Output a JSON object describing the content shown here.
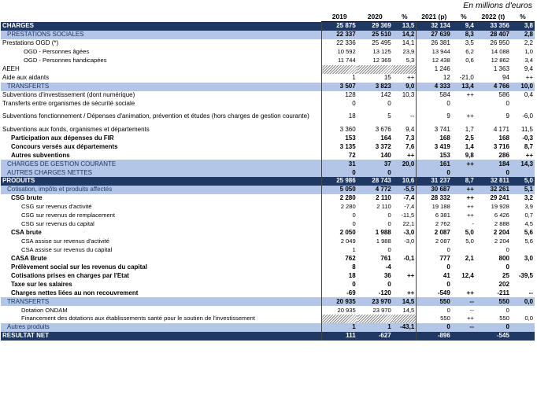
{
  "unit_note": "En millions d'euros",
  "headers": [
    "",
    "2019",
    "2020",
    "%",
    "2021 (p)",
    "%",
    "2022 (t)",
    "%"
  ],
  "rows": [
    {
      "cls": "l0",
      "cells": [
        "CHARGES",
        "25 875",
        "29 369",
        "13,5",
        "32 134",
        "9,4",
        "33 356",
        "3,8"
      ]
    },
    {
      "cls": "l1",
      "cells": [
        "PRESTATIONS SOCIALES",
        "22 337",
        "25 510",
        "14,2",
        "27 639",
        "8,3",
        "28 407",
        "2,8"
      ]
    },
    {
      "cls": "n",
      "cells": [
        "Prestations OGD (*)",
        "22 336",
        "25 495",
        "14,1",
        "26 381",
        "3,5",
        "26 950",
        "2,2"
      ]
    },
    {
      "cls": "s",
      "cells": [
        "OGD - Personnes âgées",
        "10 592",
        "13 125",
        "23,9",
        "13 944",
        "6,2",
        "14 088",
        "1,0"
      ]
    },
    {
      "cls": "s",
      "cells": [
        "OGD - Personnes handicapées",
        "11 744",
        "12 369",
        "5,3",
        "12 438",
        "0,6",
        "12 862",
        "3,4"
      ]
    },
    {
      "cls": "n",
      "hatch": true,
      "cells": [
        "AEEH",
        "",
        "",
        "",
        "1 246",
        "",
        "1 363",
        "9,4"
      ]
    },
    {
      "cls": "n",
      "cells": [
        "Aide aux aidants",
        "1",
        "15",
        "++",
        "12",
        "-21,0",
        "94",
        "++"
      ]
    },
    {
      "cls": "l1",
      "cells": [
        "TRANSFERTS",
        "3 507",
        "3 823",
        "9,0",
        "4 333",
        "13,4",
        "4 766",
        "10,0"
      ]
    },
    {
      "cls": "n",
      "cells": [
        "Subventions d'investissement (dont numérique)",
        "128",
        "142",
        "10,3",
        "584",
        "++",
        "586",
        "0,4"
      ]
    },
    {
      "cls": "n",
      "cells": [
        "Transferts entre organismes de sécurité sociale",
        "0",
        "0",
        "",
        "0",
        "",
        "0",
        ""
      ]
    },
    {
      "cls": "n tall",
      "cells": [
        "Subventions fonctionnement / Dépenses d'animation, prévention et études (hors charges de gestion courante)",
        "18",
        "5",
        "--",
        "9",
        "++",
        "9",
        "-6,0"
      ]
    },
    {
      "cls": "n",
      "cells": [
        "Subventions aux fonds, organismes et départements",
        "3 360",
        "3 676",
        "9,4",
        "3 741",
        "1,7",
        "4 171",
        "11,5"
      ]
    },
    {
      "cls": "b",
      "cells": [
        "Participation aux dépenses du FIR",
        "153",
        "164",
        "7,3",
        "168",
        "2,5",
        "168",
        "-0,3"
      ]
    },
    {
      "cls": "b",
      "cells": [
        "Concours versés aux départements",
        "3 135",
        "3 372",
        "7,6",
        "3 419",
        "1,4",
        "3 716",
        "8,7"
      ]
    },
    {
      "cls": "b",
      "cells": [
        "Autres subventions",
        "72",
        "140",
        "++",
        "153",
        "9,8",
        "286",
        "++"
      ]
    },
    {
      "cls": "l1",
      "cells": [
        "CHARGES DE GESTION COURANTE",
        "31",
        "37",
        "20,0",
        "161",
        "++",
        "184",
        "14,3"
      ]
    },
    {
      "cls": "l1",
      "cells": [
        "AUTRES CHARGES NETTES",
        "0",
        "0",
        "",
        "0",
        "",
        "0",
        ""
      ]
    },
    {
      "cls": "l0",
      "cells": [
        "PRODUITS",
        "25 986",
        "28 743",
        "10,6",
        "31 237",
        "8,7",
        "32 811",
        "5,0"
      ]
    },
    {
      "cls": "l1",
      "cells": [
        "Cotisation, impôts et produits affectés",
        "5 050",
        "4 772",
        "-5,5",
        "30 687",
        "++",
        "32 261",
        "5,1"
      ]
    },
    {
      "cls": "b",
      "cells": [
        "CSG brute",
        "2 280",
        "2 110",
        "-7,4",
        "28 332",
        "++",
        "29 241",
        "3,2"
      ]
    },
    {
      "cls": "s2",
      "cells": [
        "CSG sur revenus d'activité",
        "2 280",
        "2 110",
        "-7,4",
        "19 188",
        "++",
        "19 928",
        "3,9"
      ]
    },
    {
      "cls": "s2",
      "cells": [
        "CSG sur revenus de remplacement",
        "0",
        "0",
        "-11,5",
        "6 381",
        "++",
        "6 426",
        "0,7"
      ]
    },
    {
      "cls": "s2",
      "cells": [
        "CSG sur revenus du capital",
        "0",
        "0",
        "22,1",
        "2 762",
        "-",
        "2 888",
        "4,5"
      ]
    },
    {
      "cls": "b",
      "cells": [
        "CSA brute",
        "2 050",
        "1 988",
        "-3,0",
        "2 087",
        "5,0",
        "2 204",
        "5,6"
      ]
    },
    {
      "cls": "s2",
      "cells": [
        "CSA assise sur revenus d'activité",
        "2 049",
        "1 988",
        "-3,0",
        "2 087",
        "5,0",
        "2 204",
        "5,6"
      ]
    },
    {
      "cls": "s2",
      "cells": [
        "CSA assise sur revenus du capital",
        "1",
        "0",
        "",
        "0",
        "",
        "0",
        ""
      ]
    },
    {
      "cls": "b",
      "cells": [
        "CASA Brute",
        "762",
        "761",
        "-0,1",
        "777",
        "2,1",
        "800",
        "3,0"
      ]
    },
    {
      "cls": "b",
      "cells": [
        "Prélèvement social sur les revenus du capital",
        "8",
        "-4",
        "",
        "0",
        "",
        "0",
        ""
      ]
    },
    {
      "cls": "b",
      "cells": [
        "Cotisations prises en charges par l'Etat",
        "18",
        "36",
        "++",
        "41",
        "12,4",
        "25",
        "-39,5"
      ]
    },
    {
      "cls": "b",
      "cells": [
        "Taxe sur les salaires",
        "0",
        "0",
        "",
        "0",
        "",
        "202",
        ""
      ]
    },
    {
      "cls": "b",
      "cells": [
        "Charges nettes liées au non recouvrement",
        "-69",
        "-120",
        "++",
        "-549",
        "++",
        "-211",
        "--"
      ]
    },
    {
      "cls": "l1",
      "cells": [
        "TRANSFERTS",
        "20 935",
        "23 970",
        "14,5",
        "550",
        "--",
        "550",
        "0,0"
      ]
    },
    {
      "cls": "s2",
      "cells": [
        "Dotation ONDAM",
        "20 935",
        "23 970",
        "14,5",
        "0",
        "--",
        "0",
        ""
      ]
    },
    {
      "cls": "s2 hatchfin",
      "cells": [
        "Financement des dotations aux établissements santé pour le soutien de l'investissement",
        "",
        "",
        "",
        "550",
        "++",
        "550",
        "0,0"
      ]
    },
    {
      "cls": "l1",
      "cells": [
        "Autres produits",
        "1",
        "1",
        "-43,1",
        "0",
        "--",
        "0",
        ""
      ]
    },
    {
      "cls": "tot",
      "cells": [
        "RESULTAT NET",
        "111",
        "-627",
        "",
        "-896",
        "",
        "-545",
        ""
      ]
    }
  ]
}
